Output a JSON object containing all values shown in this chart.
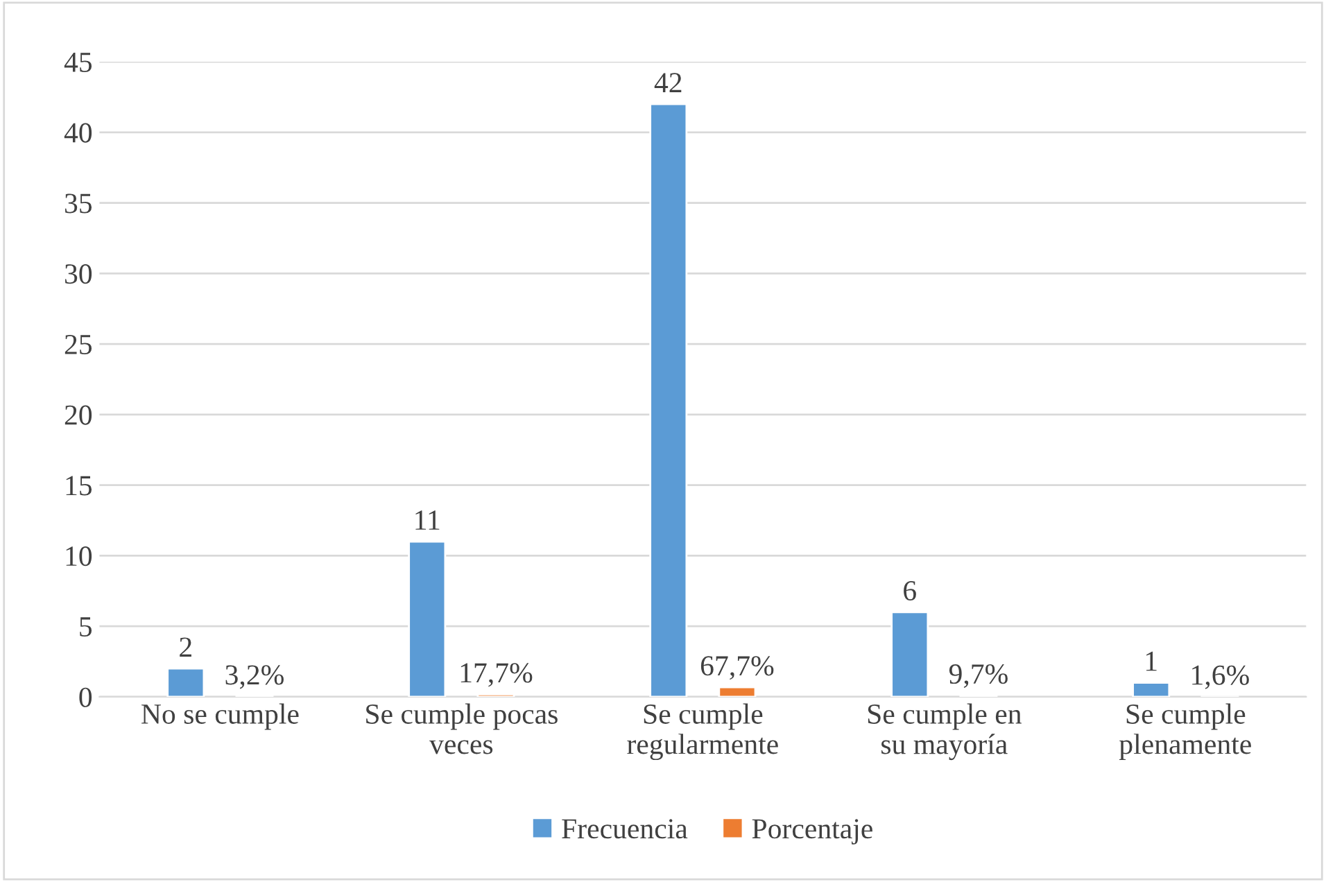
{
  "chart_data": {
    "type": "bar",
    "categories": [
      "No se cumple",
      "Se cumple pocas veces",
      "Se cumple regularmente",
      "Se cumple en su mayoría",
      "Se cumple plenamente"
    ],
    "series": [
      {
        "name": "Frecuencia",
        "color": "#5b9bd5",
        "values": [
          2,
          11,
          42,
          6,
          1
        ],
        "value_labels": [
          "2",
          "11",
          "42",
          "6",
          "1"
        ]
      },
      {
        "name": "Porcentaje",
        "color": "#ed7d31",
        "values": [
          0.032,
          0.177,
          0.677,
          0.097,
          0.016
        ],
        "value_labels": [
          "3,2%",
          "17,7%",
          "67,7%",
          "9,7%",
          "1,6%"
        ]
      }
    ],
    "ylim": [
      0,
      45
    ],
    "yticks": [
      0,
      5,
      10,
      15,
      20,
      25,
      30,
      35,
      40,
      45
    ],
    "grid": "y",
    "legend": "bottom"
  }
}
